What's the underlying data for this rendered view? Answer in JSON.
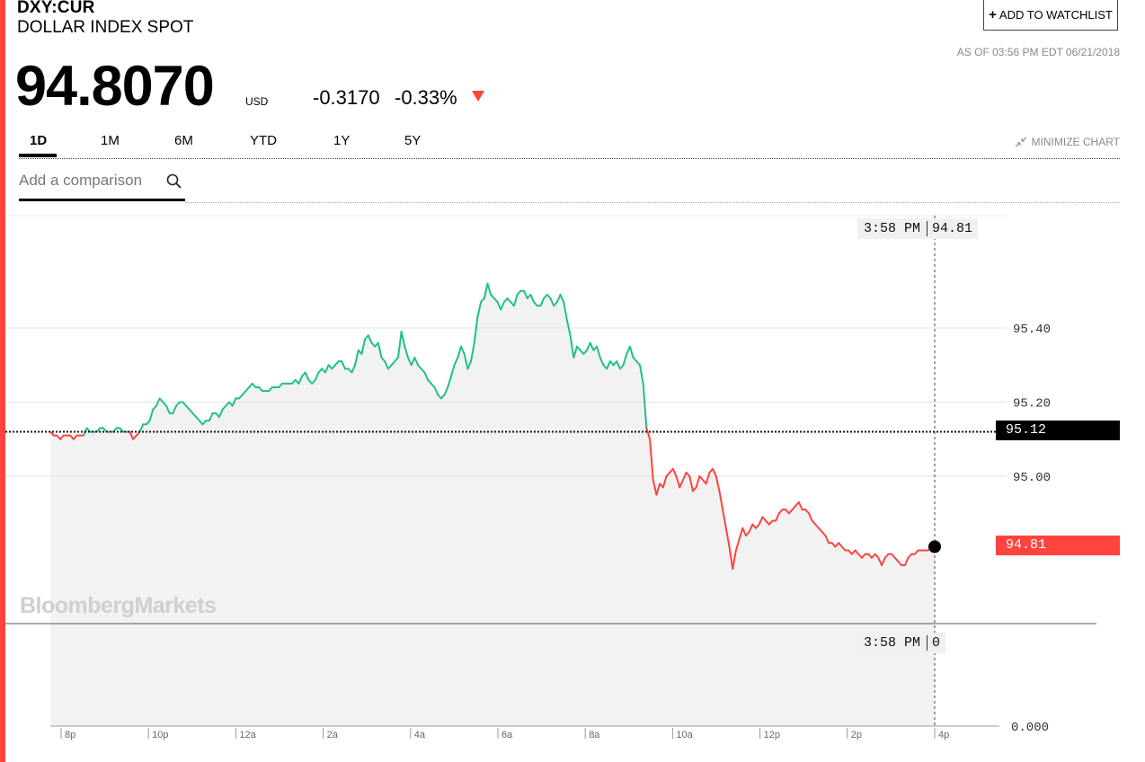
{
  "header": {
    "ticker": "DXY:CUR",
    "name": "DOLLAR INDEX SPOT",
    "price": "94.8070",
    "currency": "USD",
    "change": "-0.3170",
    "change_pct": "-0.33%",
    "direction_icon": "down-triangle-icon",
    "watchlist_label": "ADD TO WATCHLIST",
    "as_of": "AS OF 03:56 PM EDT 06/21/2018"
  },
  "tabs": [
    {
      "label": "1D",
      "active": true
    },
    {
      "label": "1M",
      "active": false
    },
    {
      "label": "6M",
      "active": false
    },
    {
      "label": "YTD",
      "active": false
    },
    {
      "label": "1Y",
      "active": false
    },
    {
      "label": "5Y",
      "active": false
    }
  ],
  "minimize_label": "MINIMIZE CHART",
  "comparison": {
    "placeholder": "Add a comparison",
    "icon": "search-icon"
  },
  "watermark": "BloombergMarkets",
  "colors": {
    "up": "#20c184",
    "down": "#ff433d",
    "fill": "#f2f2f2",
    "accent": "#ff433d"
  },
  "chart_data": {
    "type": "line",
    "series": [
      {
        "values": [
          95.12,
          95.11,
          95.11,
          95.1,
          95.11,
          95.11,
          95.11,
          95.1,
          95.11,
          95.11,
          95.11,
          95.13,
          95.12,
          95.12,
          95.12,
          95.13,
          95.13,
          95.12,
          95.12,
          95.12,
          95.13,
          95.13,
          95.12,
          95.12,
          95.12,
          95.1,
          95.11,
          95.12,
          95.14,
          95.14,
          95.15,
          95.18,
          95.19,
          95.21,
          95.2,
          95.19,
          95.17,
          95.17,
          95.19,
          95.2,
          95.2,
          95.19,
          95.18,
          95.17,
          95.16,
          95.15,
          95.14,
          95.15,
          95.15,
          95.17,
          95.17,
          95.16,
          95.18,
          95.19,
          95.2,
          95.19,
          95.21,
          95.21,
          95.22,
          95.23,
          95.24,
          95.25,
          95.24,
          95.24,
          95.23,
          95.23,
          95.23,
          95.24,
          95.24,
          95.24,
          95.25,
          95.25,
          95.25,
          95.25,
          95.26,
          95.25,
          95.27,
          95.28,
          95.26,
          95.25,
          95.26,
          95.28,
          95.29,
          95.28,
          95.3,
          95.29,
          95.3,
          95.31,
          95.31,
          95.29,
          95.29,
          95.28,
          95.3,
          95.34,
          95.33,
          95.37,
          95.38,
          95.36,
          95.35,
          95.36,
          95.32,
          95.31,
          95.29,
          95.3,
          95.31,
          95.32,
          95.39,
          95.35,
          95.32,
          95.3,
          95.32,
          95.3,
          95.29,
          95.28,
          95.26,
          95.25,
          95.24,
          95.22,
          95.21,
          95.22,
          95.24,
          95.27,
          95.3,
          95.32,
          95.35,
          95.33,
          95.29,
          95.31,
          95.36,
          95.43,
          95.47,
          95.48,
          95.52,
          95.49,
          95.48,
          95.47,
          95.45,
          95.47,
          95.48,
          95.47,
          95.46,
          95.49,
          95.5,
          95.5,
          95.48,
          95.49,
          95.47,
          95.46,
          95.46,
          95.48,
          95.49,
          95.48,
          95.46,
          95.47,
          95.49,
          95.47,
          95.42,
          95.38,
          95.32,
          95.35,
          95.34,
          95.33,
          95.34,
          95.36,
          95.34,
          95.35,
          95.32,
          95.3,
          95.29,
          95.31,
          95.3,
          95.31,
          95.29,
          95.3,
          95.33,
          95.35,
          95.32,
          95.31,
          95.3,
          95.25,
          95.13,
          95.1,
          94.99,
          94.95,
          94.98,
          94.97,
          95.0,
          95.01,
          95.02,
          95.0,
          94.97,
          94.99,
          95.01,
          95.0,
          94.96,
          94.97,
          95.0,
          94.99,
          94.98,
          95.01,
          95.02,
          95.0,
          94.96,
          94.91,
          94.86,
          94.81,
          94.75,
          94.8,
          94.83,
          94.86,
          94.84,
          94.85,
          94.87,
          94.86,
          94.87,
          94.89,
          94.88,
          94.87,
          94.88,
          94.88,
          94.9,
          94.91,
          94.91,
          94.9,
          94.91,
          94.92,
          94.93,
          94.91,
          94.91,
          94.9,
          94.88,
          94.87,
          94.86,
          94.85,
          94.84,
          94.82,
          94.82,
          94.81,
          94.82,
          94.81,
          94.8,
          94.8,
          94.79,
          94.8,
          94.79,
          94.78,
          94.79,
          94.79,
          94.78,
          94.79,
          94.78,
          94.76,
          94.78,
          94.79,
          94.79,
          94.78,
          94.77,
          94.76,
          94.76,
          94.78,
          94.79,
          94.79,
          94.8,
          94.8,
          94.8,
          94.8,
          94.81,
          94.81
        ]
      }
    ],
    "prev_close": 95.12,
    "last": 94.81,
    "yticks": [
      "95.40",
      "95.20",
      "95.00"
    ],
    "ylim": [
      94.6,
      95.7
    ],
    "xticks": [
      "8p",
      "10p",
      "12a",
      "2a",
      "4a",
      "6a",
      "8a",
      "10a",
      "12p",
      "2p",
      "4p"
    ],
    "prev_close_label": "95.12",
    "last_label": "94.81",
    "volume_axis_label": "0.000",
    "tooltip_time": "3:58 PM",
    "tooltip_price": "94.81",
    "tooltip_volume": "0"
  }
}
